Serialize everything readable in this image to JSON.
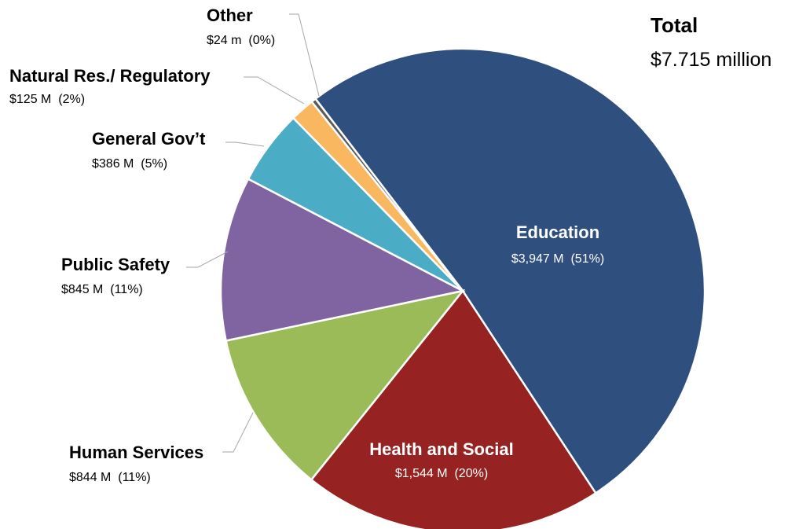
{
  "chart_data": {
    "type": "pie",
    "total": {
      "label": "Total",
      "value": "$7.715 million"
    },
    "slices": [
      {
        "name": "Education",
        "value": 3947,
        "text": "$3,947 M  (51%)",
        "color": "#2f4f7f"
      },
      {
        "name": "Health and Social",
        "value": 1544,
        "text": "$1,544 M  (20%)",
        "color": "#962321"
      },
      {
        "name": "Human Services",
        "value": 844,
        "text": "$844 M  (11%)",
        "color": "#9bbb59"
      },
      {
        "name": "Public Safety",
        "value": 845,
        "text": "$845 M  (11%)",
        "color": "#8064a2"
      },
      {
        "name": "General Gov’t",
        "value": 386,
        "text": "$386 M  (5%)",
        "color": "#4bacc6"
      },
      {
        "name": "Natural Res./ Regulatory",
        "value": 125,
        "text": "$125 M  (2%)",
        "color": "#f9b860"
      },
      {
        "name": "Other",
        "value": 24,
        "text": "$24 m  (0%)",
        "color": "#5a5a5a"
      }
    ]
  }
}
